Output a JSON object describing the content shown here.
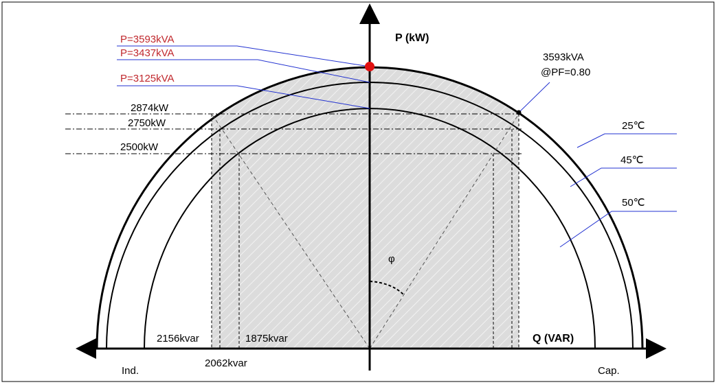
{
  "diagram": {
    "axes": {
      "p_axis_label": "P (kW)",
      "q_axis_label": "Q (VAR)",
      "ind_label": "Ind.",
      "cap_label": "Cap.",
      "angle_label": "φ"
    },
    "apparent_power_labels": [
      "P=3593kVA",
      "P=3437kVA",
      "P=3125kVA"
    ],
    "active_power_labels": [
      "2874kW",
      "2750kW",
      "2500kW"
    ],
    "reactive_power_labels": [
      "2156kvar",
      "2062kvar",
      "1875kvar"
    ],
    "rating_callout": {
      "line1": "3593kVA",
      "line2": "@PF=0.80"
    },
    "temperature_labels": [
      "25℃",
      "45℃",
      "50℃"
    ],
    "colors": {
      "annotation_red": "#c0282d",
      "leader_blue": "#2030d0",
      "marker_red": "#e01010",
      "shade": "#dcdcdc"
    }
  }
}
